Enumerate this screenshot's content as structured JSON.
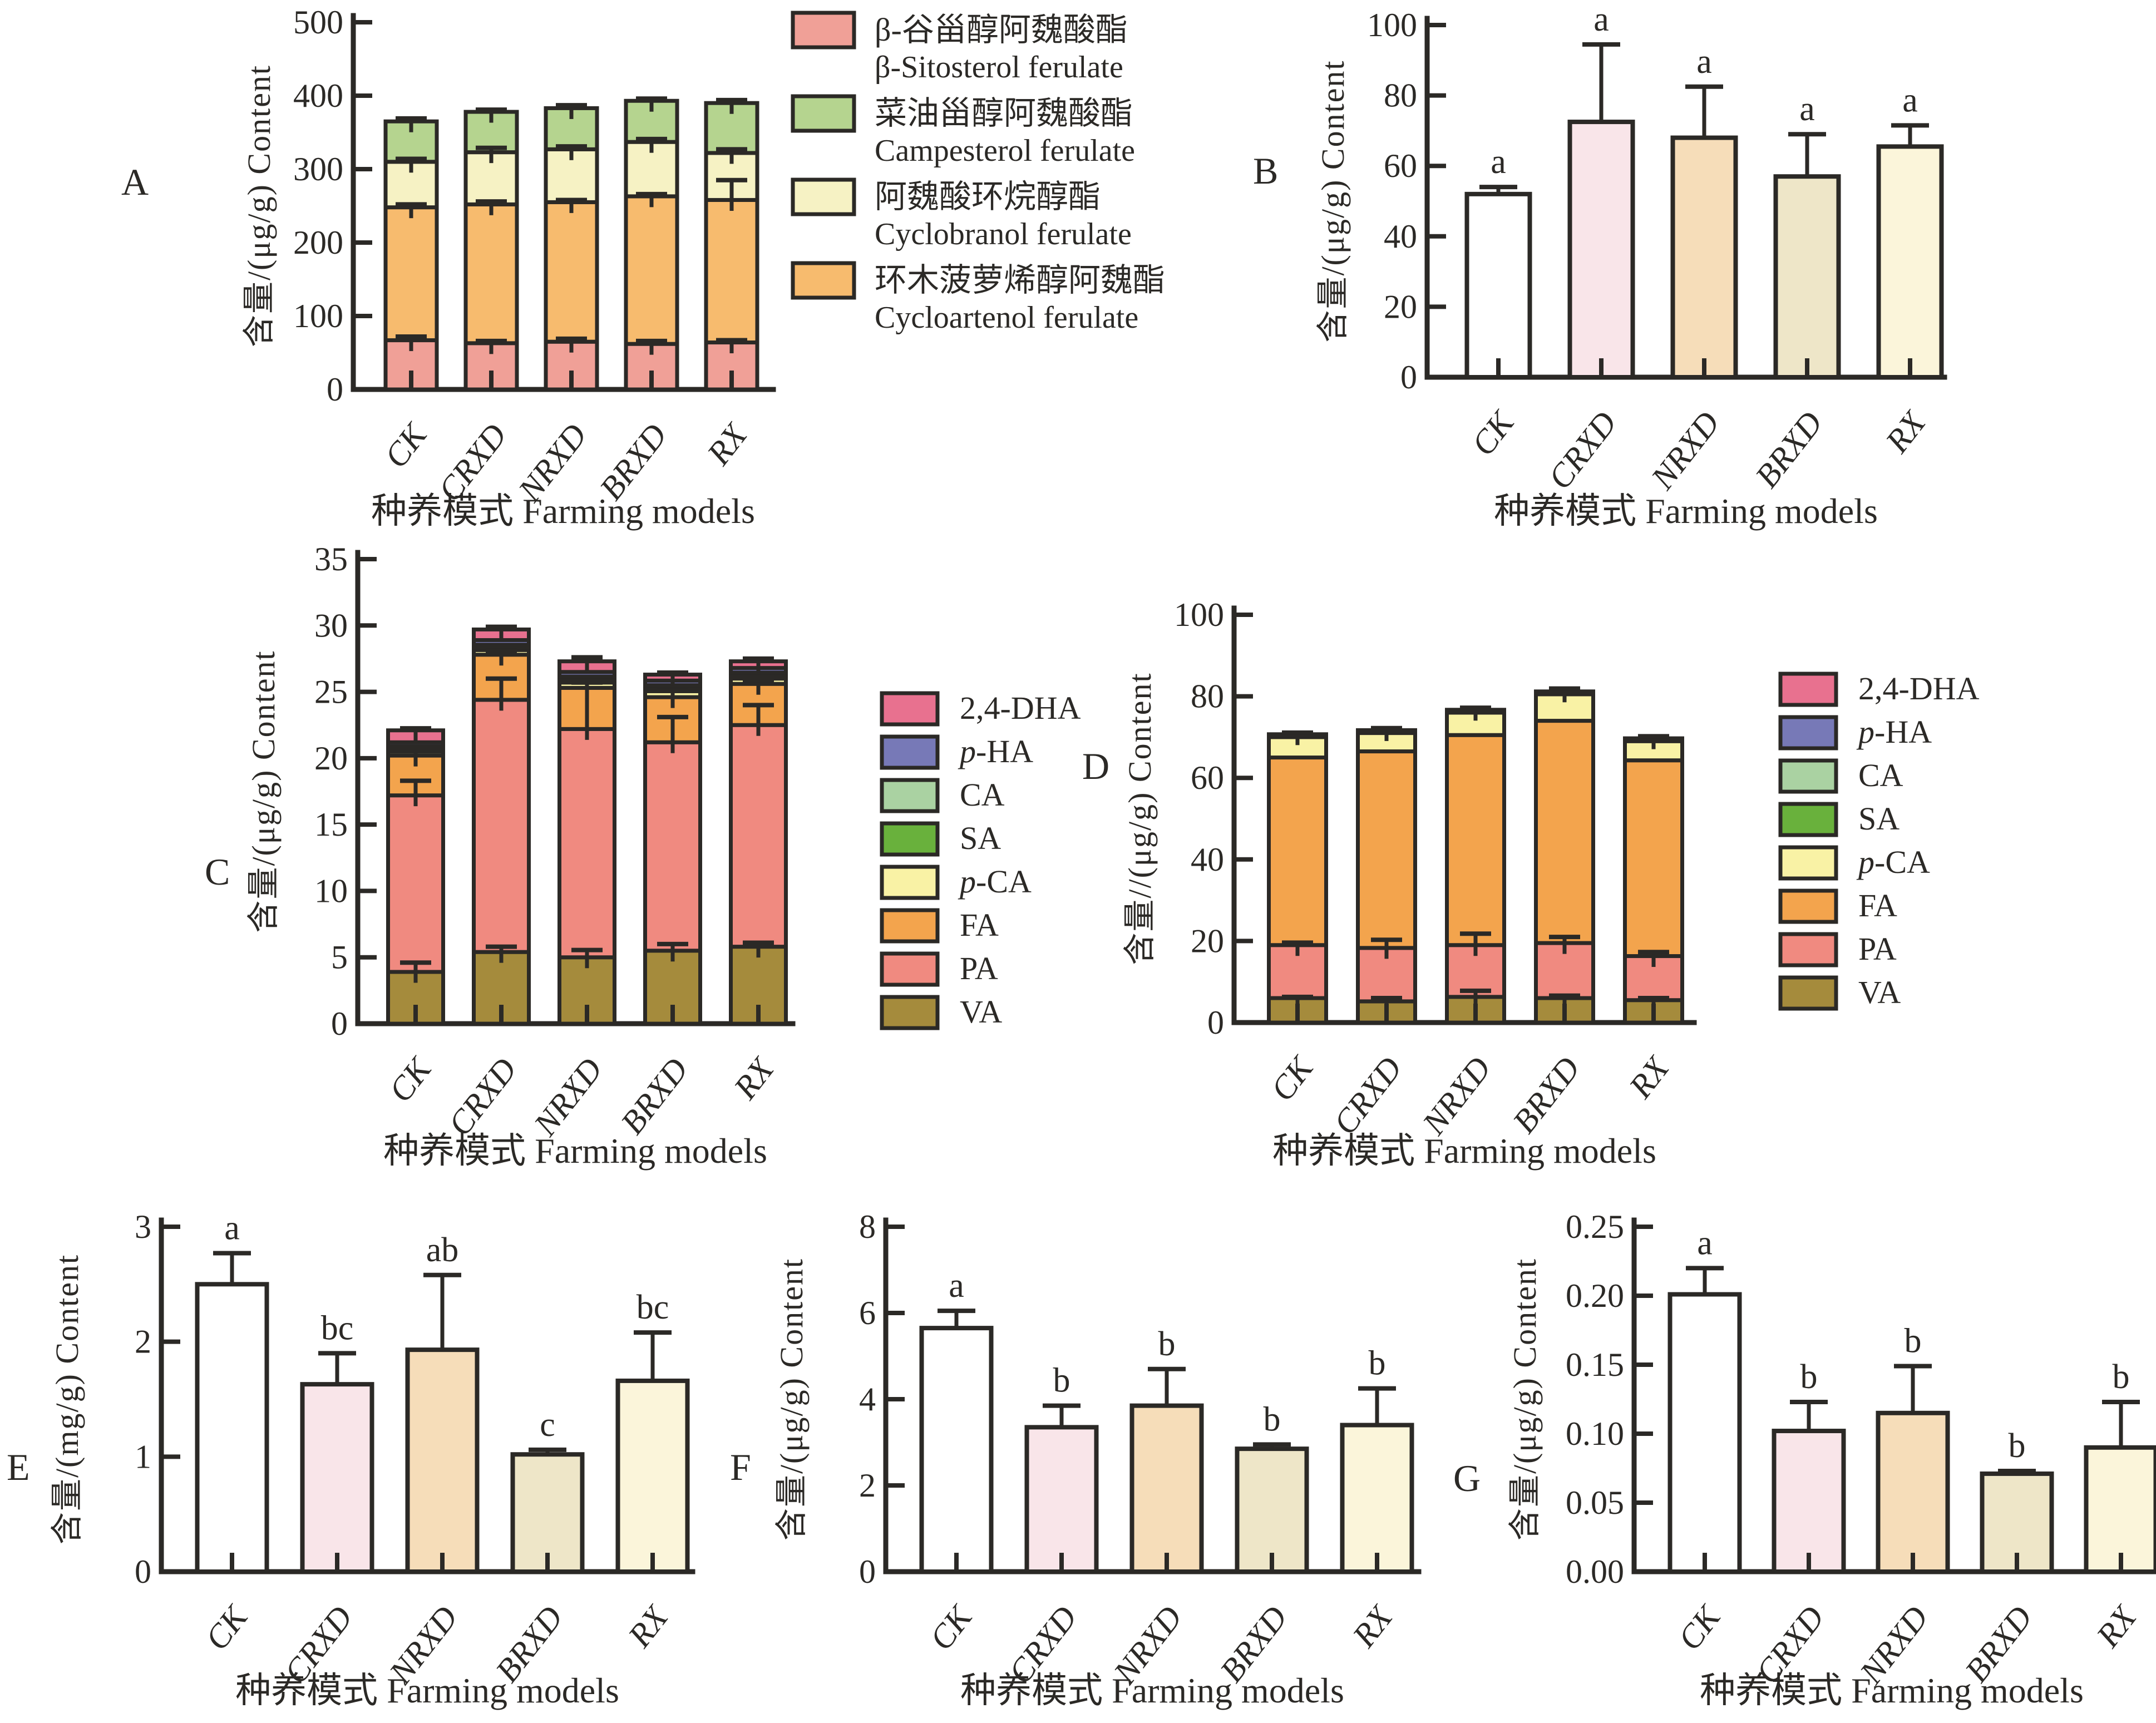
{
  "figure": {
    "x_axis_title": "种养模式 Farming models",
    "categories": [
      "CK",
      "CRXD",
      "NRXD",
      "BRXD",
      "RX"
    ],
    "ink_color": "#2b2926",
    "background": "#ffffff"
  },
  "chart_data": [
    {
      "id": "A",
      "letter": "A",
      "type": "stacked",
      "title": "",
      "ylabel": "含量/(μg/g)  Content",
      "xlabel": "种养模式 Farming models",
      "ylim": [
        0,
        500
      ],
      "ytick_step": 100,
      "ytick_decimals": 0,
      "grid": false,
      "categories": [
        "CK",
        "CRXD",
        "NRXD",
        "BRXD",
        "RX"
      ],
      "series": [
        {
          "key": "beta-sitosterol-ferulate",
          "name": "β-谷甾醇阿魏酸酯 β-Sitosterol ferulate",
          "color": "#f0a097",
          "values": [
            67,
            63,
            65,
            62,
            64
          ],
          "err": [
            5,
            3,
            4,
            4,
            3
          ]
        },
        {
          "key": "cycloartenol-ferulate",
          "name": "环木菠萝烯醇阿魏酯 Cycloartenol ferulate",
          "color": "#f7bb6e",
          "values": [
            181,
            189,
            190,
            201,
            194
          ],
          "err": [
            4,
            4,
            3,
            3,
            27
          ]
        },
        {
          "key": "cyclobranol-ferulate",
          "name": "阿魏酸环烷醇酯 Cyclobranol ferulate",
          "color": "#f6f2c4",
          "values": [
            62,
            71,
            72,
            74,
            64
          ],
          "err": [
            4,
            6,
            4,
            4,
            5
          ]
        },
        {
          "key": "campesterol-ferulate",
          "name": "菜油甾醇阿魏酸酯 Campesterol ferulate",
          "color": "#b5d48f",
          "values": [
            55,
            55,
            56,
            56,
            68
          ],
          "err": [
            4,
            3,
            4,
            3,
            4
          ]
        }
      ],
      "legend": [
        {
          "cn": "β-谷甾醇阿魏酸酯",
          "en": "β-Sitosterol ferulate",
          "color": "#f0a097"
        },
        {
          "cn": "菜油甾醇阿魏酸酯",
          "en": "Campesterol ferulate",
          "color": "#b5d48f"
        },
        {
          "cn": "阿魏酸环烷醇酯",
          "en": "Cyclobranol ferulate",
          "color": "#f6f2c4"
        },
        {
          "cn": "环木菠萝烯醇阿魏酯",
          "en": "Cycloartenol ferulate",
          "color": "#f7bb6e"
        }
      ],
      "legend_position": "right"
    },
    {
      "id": "B",
      "letter": "B",
      "type": "bar",
      "ylabel": "含量/(μg/g)  Content",
      "xlabel": "种养模式 Farming models",
      "ylim": [
        0,
        100
      ],
      "ytick_step": 20,
      "ytick_decimals": 0,
      "grid": false,
      "categories": [
        "CK",
        "CRXD",
        "NRXD",
        "BRXD",
        "RX"
      ],
      "values": [
        52,
        72.5,
        68,
        57,
        65.5
      ],
      "err": [
        2,
        22,
        14.5,
        12,
        6
      ],
      "letters": [
        "a",
        "a",
        "a",
        "a",
        "a"
      ],
      "bar_colors": [
        "#ffffff",
        "#f9e5e9",
        "#f6ddb9",
        "#eee6c8",
        "#fbf5da"
      ]
    },
    {
      "id": "C",
      "letter": "C",
      "type": "stacked",
      "ylabel": "含量/(μg/g)  Content",
      "xlabel": "种养模式 Farming models",
      "ylim": [
        0,
        35
      ],
      "ytick_step": 5,
      "ytick_decimals": 0,
      "grid": false,
      "categories": [
        "CK",
        "CRXD",
        "NRXD",
        "BRXD",
        "RX"
      ],
      "series": [
        {
          "key": "VA",
          "name": "VA",
          "color": "#a58b3c",
          "values": [
            3.9,
            5.4,
            5.0,
            5.5,
            5.8
          ],
          "err": [
            0.7,
            0.4,
            0.55,
            0.5,
            0.3
          ]
        },
        {
          "key": "PA",
          "name": "PA",
          "color": "#f08a80",
          "values": [
            13.3,
            19.0,
            17.2,
            15.7,
            16.7
          ],
          "err": [
            1.1,
            1.6,
            3.6,
            1.9,
            1.5
          ]
        },
        {
          "key": "FA",
          "name": "FA",
          "color": "#f3a44d",
          "values": [
            3.0,
            3.4,
            3.1,
            3.4,
            3.1
          ],
          "err": [
            0.4,
            0.3,
            0.4,
            0.5,
            0.3
          ]
        },
        {
          "key": "p-CA",
          "name": "p-CA",
          "color": "#f9f2a5",
          "values": [
            0.3,
            0.35,
            0.4,
            0.45,
            0.4
          ],
          "err": [
            0,
            0,
            0,
            0,
            0
          ]
        },
        {
          "key": "SA",
          "name": "SA",
          "color": "#69b13c",
          "values": [
            0.2,
            0.2,
            0.2,
            0.2,
            0.2
          ],
          "err": [
            0,
            0,
            0,
            0,
            0
          ]
        },
        {
          "key": "CA",
          "name": "CA",
          "color": "#aad2a2",
          "values": [
            0.2,
            0.2,
            0.25,
            0.25,
            0.25
          ],
          "err": [
            0,
            0,
            0,
            0,
            0
          ]
        },
        {
          "key": "p-HA",
          "name": "p-HA",
          "color": "#7779b7",
          "values": [
            0.3,
            0.35,
            0.35,
            0.35,
            0.35
          ],
          "err": [
            0,
            0,
            0,
            0,
            0
          ]
        },
        {
          "key": "2,4-DHA",
          "name": "2,4-DHA",
          "color": "#e8718f",
          "values": [
            0.9,
            0.8,
            0.8,
            0.45,
            0.5
          ],
          "err": [
            0.15,
            0.2,
            0.3,
            0.15,
            0.2
          ]
        }
      ],
      "legend": [
        {
          "label": "2,4-DHA",
          "color": "#e8718f"
        },
        {
          "label": "p-HA",
          "color": "#7779b7"
        },
        {
          "label": "CA",
          "color": "#aad2a2"
        },
        {
          "label": "SA",
          "color": "#69b13c"
        },
        {
          "label": "p-CA",
          "color": "#f9f2a5"
        },
        {
          "label": "FA",
          "color": "#f3a44d"
        },
        {
          "label": "PA",
          "color": "#f08a80"
        },
        {
          "label": "VA",
          "color": "#a58b3c"
        }
      ],
      "legend_position": "right"
    },
    {
      "id": "D",
      "letter": "D",
      "type": "stacked",
      "ylabel": "含量//(μg/g) Content",
      "xlabel": "种养模式 Farming models",
      "ylim": [
        0,
        100
      ],
      "ytick_step": 20,
      "ytick_decimals": 0,
      "grid": false,
      "categories": [
        "CK",
        "CRXD",
        "NRXD",
        "BRXD",
        "RX"
      ],
      "series": [
        {
          "key": "VA",
          "name": "VA",
          "color": "#a58b3c",
          "values": [
            6.0,
            5.2,
            6.3,
            6.0,
            5.5
          ],
          "err": [
            0.3,
            0.8,
            1.5,
            0.6,
            0.5
          ]
        },
        {
          "key": "PA",
          "name": "PA",
          "color": "#f08a80",
          "values": [
            13.0,
            13.1,
            12.7,
            13.5,
            10.8
          ],
          "err": [
            0.6,
            2.0,
            2.8,
            1.5,
            1.0
          ]
        },
        {
          "key": "FA",
          "name": "FA",
          "color": "#f3a44d",
          "values": [
            46.0,
            48.2,
            51.5,
            54.5,
            48.0
          ],
          "err": [
            0,
            0,
            0,
            0,
            0
          ]
        },
        {
          "key": "p-CA",
          "name": "p-CA",
          "color": "#f9f2a5",
          "values": [
            5.0,
            4.5,
            5.5,
            6.5,
            4.7
          ],
          "err": [
            0,
            0,
            0,
            0,
            0
          ]
        },
        {
          "key": "SA",
          "name": "SA",
          "color": "#69b13c",
          "values": [
            0.15,
            0.15,
            0.15,
            0.15,
            0.15
          ],
          "err": [
            0,
            0,
            0,
            0,
            0
          ]
        },
        {
          "key": "CA",
          "name": "CA",
          "color": "#aad2a2",
          "values": [
            0.15,
            0.15,
            0.15,
            0.15,
            0.15
          ],
          "err": [
            0,
            0,
            0,
            0,
            0
          ]
        },
        {
          "key": "p-HA",
          "name": "p-HA",
          "color": "#7779b7",
          "values": [
            0.15,
            0.15,
            0.15,
            0.15,
            0.15
          ],
          "err": [
            0,
            0,
            0,
            0,
            0
          ]
        },
        {
          "key": "2,4-DHA",
          "name": "2,4-DHA",
          "color": "#e8718f",
          "values": [
            0.25,
            0.25,
            0.25,
            0.25,
            0.25
          ],
          "err": [
            0.4,
            0.5,
            0.5,
            0.7,
            0.5
          ]
        }
      ],
      "legend": [
        {
          "label": "2,4-DHA",
          "color": "#e8718f"
        },
        {
          "label": "p-HA",
          "color": "#7779b7"
        },
        {
          "label": "CA",
          "color": "#aad2a2"
        },
        {
          "label": "SA",
          "color": "#69b13c"
        },
        {
          "label": "p-CA",
          "color": "#f9f2a5"
        },
        {
          "label": "FA",
          "color": "#f3a44d"
        },
        {
          "label": "PA",
          "color": "#f08a80"
        },
        {
          "label": "VA",
          "color": "#a58b3c"
        }
      ],
      "legend_position": "right"
    },
    {
      "id": "E",
      "letter": "E",
      "type": "bar",
      "ylabel": "含量/(mg/g)  Content",
      "xlabel": "种养模式 Farming models",
      "ylim": [
        0,
        3
      ],
      "ytick_step": 1,
      "ytick_decimals": 0,
      "grid": false,
      "categories": [
        "CK",
        "CRXD",
        "NRXD",
        "BRXD",
        "RX"
      ],
      "values": [
        2.5,
        1.63,
        1.93,
        1.02,
        1.66
      ],
      "err": [
        0.27,
        0.27,
        0.65,
        0.04,
        0.42
      ],
      "letters": [
        "a",
        "bc",
        "ab",
        "c",
        "bc"
      ],
      "bar_colors": [
        "#ffffff",
        "#f9e5e9",
        "#f6ddb9",
        "#eee6c8",
        "#fbf5da"
      ]
    },
    {
      "id": "F",
      "letter": "F",
      "type": "bar",
      "ylabel": "含量/(μg/g)  Content",
      "xlabel": "种养模式 Farming models",
      "ylim": [
        0,
        8
      ],
      "ytick_step": 2,
      "ytick_decimals": 0,
      "grid": false,
      "categories": [
        "CK",
        "CRXD",
        "NRXD",
        "BRXD",
        "RX"
      ],
      "values": [
        5.65,
        3.35,
        3.85,
        2.85,
        3.4
      ],
      "err": [
        0.4,
        0.5,
        0.85,
        0.1,
        0.85
      ],
      "letters": [
        "a",
        "b",
        "b",
        "b",
        "b"
      ],
      "bar_colors": [
        "#ffffff",
        "#f9e5e9",
        "#f6ddb9",
        "#eee6c8",
        "#fbf5da"
      ]
    },
    {
      "id": "G",
      "letter": "G",
      "type": "bar",
      "ylabel": "含量/(μg/g)  Content",
      "xlabel": "种养模式 Farming models",
      "ylim": [
        0,
        0.25
      ],
      "ytick_step": 0.05,
      "ytick_decimals": 2,
      "grid": false,
      "categories": [
        "CK",
        "CRXD",
        "NRXD",
        "BRXD",
        "RX"
      ],
      "values": [
        0.201,
        0.102,
        0.115,
        0.071,
        0.09
      ],
      "err": [
        0.019,
        0.021,
        0.034,
        0.002,
        0.033
      ],
      "letters": [
        "a",
        "b",
        "b",
        "b",
        "b"
      ],
      "bar_colors": [
        "#ffffff",
        "#f9e5e9",
        "#f6ddb9",
        "#eee6c8",
        "#fbf5da"
      ]
    }
  ]
}
